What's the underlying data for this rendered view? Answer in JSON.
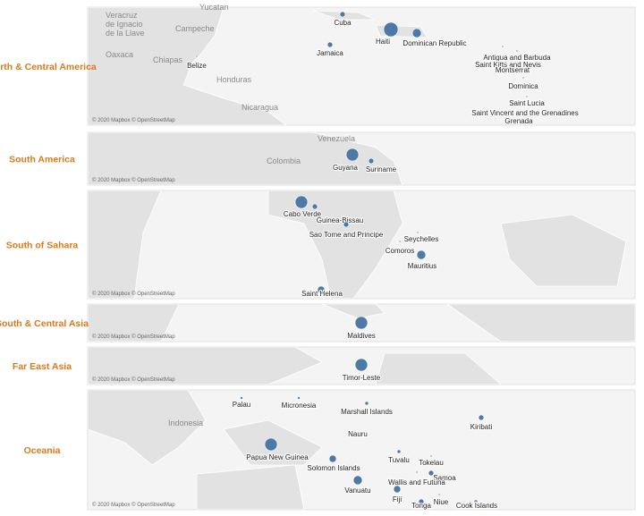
{
  "panels": [
    {
      "region": "North & Central America",
      "places": [
        "Cuba",
        "Haiti",
        "Dominican Republic",
        "Jamaica",
        "Antigua and Barbuda",
        "Saint Kitts and Nevis",
        "Montserrat",
        "Dominica",
        "Saint Lucia",
        "Saint Vincent and the Grenadines",
        "Grenada",
        "Belize"
      ],
      "basemap_labels": [
        "Yucatan",
        "Veracruz",
        "de Ignacio",
        "de la Llave",
        "Campeche",
        "Oaxaca",
        "Chiapas",
        "Honduras",
        "Nicaragua"
      ],
      "credit": "© 2020 Mapbox © OpenStreetMap"
    },
    {
      "region": "South America",
      "places": [
        "Guyana",
        "Suriname"
      ],
      "basemap_labels": [
        "Venezuela",
        "Colombia"
      ],
      "credit": "© 2020 Mapbox © OpenStreetMap"
    },
    {
      "region": "South of Sahara",
      "places": [
        "Cabo Verde",
        "Guinea-Bissau",
        "Sao Tome and Principe",
        "Seychelles",
        "Comoros",
        "Mauritius",
        "Saint Helena"
      ],
      "basemap_labels": [],
      "credit": "© 2020 Mapbox © OpenStreetMap"
    },
    {
      "region": "South & Central Asia",
      "places": [
        "Maldives"
      ],
      "basemap_labels": [],
      "credit": "© 2020 Mapbox © OpenStreetMap"
    },
    {
      "region": "Far East Asia",
      "places": [
        "Timor-Leste"
      ],
      "basemap_labels": [],
      "credit": "© 2020 Mapbox © OpenStreetMap"
    },
    {
      "region": "Oceania",
      "places": [
        "Palau",
        "Micronesia",
        "Marshall Islands",
        "Nauru",
        "Kiribati",
        "Papua New Guinea",
        "Solomon Islands",
        "Tuvalu",
        "Tokelau",
        "Samoa",
        "Wallis and Futuna",
        "Vanuatu",
        "Fiji",
        "Niue",
        "Tonga",
        "Cook Islands"
      ],
      "basemap_labels": [
        "Indonesia"
      ],
      "credit": "© 2020 Mapbox © OpenStreetMap"
    }
  ]
}
